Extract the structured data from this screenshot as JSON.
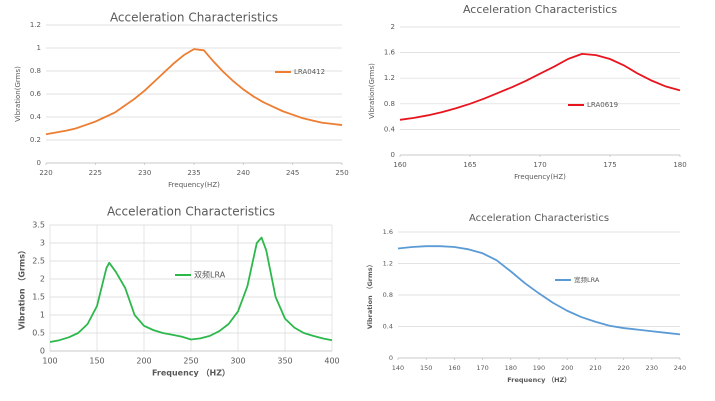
{
  "chart_data": [
    {
      "type": "line",
      "title": "Acceleration Characteristics",
      "x_label": "Frequency(HZ)",
      "y_label": "Vibration(Grms)",
      "x": [
        220,
        221,
        222,
        223,
        224,
        225,
        226,
        227,
        228,
        229,
        230,
        231,
        232,
        233,
        234,
        235,
        236,
        237,
        238,
        239,
        240,
        241,
        242,
        243,
        244,
        245,
        246,
        247,
        248,
        249,
        250
      ],
      "series": [
        {
          "name": "LRA0412",
          "color": "#ed7d31",
          "values": [
            0.25,
            0.265,
            0.28,
            0.3,
            0.33,
            0.36,
            0.4,
            0.44,
            0.5,
            0.56,
            0.63,
            0.71,
            0.79,
            0.87,
            0.94,
            0.99,
            0.98,
            0.88,
            0.79,
            0.71,
            0.64,
            0.58,
            0.53,
            0.49,
            0.45,
            0.42,
            0.39,
            0.37,
            0.35,
            0.34,
            0.33
          ]
        }
      ],
      "xlim": [
        220,
        250
      ],
      "xticks": [
        220,
        225,
        230,
        235,
        240,
        245,
        250
      ],
      "ylim": [
        0,
        1.2
      ],
      "yticks": [
        0,
        0.2,
        0.4,
        0.6,
        0.8,
        1,
        1.2
      ],
      "grid": "y"
    },
    {
      "type": "line",
      "title": "Acceleration Characteristics",
      "x_label": "Frequency(HZ)",
      "y_label": "Vibration(Grms)",
      "x": [
        160,
        161,
        162,
        163,
        164,
        165,
        166,
        167,
        168,
        169,
        170,
        171,
        172,
        173,
        174,
        175,
        176,
        177,
        178,
        179,
        180
      ],
      "series": [
        {
          "name": "LRA0619",
          "color": "#e8141e",
          "values": [
            0.55,
            0.58,
            0.62,
            0.67,
            0.73,
            0.8,
            0.88,
            0.97,
            1.06,
            1.16,
            1.27,
            1.38,
            1.5,
            1.58,
            1.56,
            1.5,
            1.4,
            1.27,
            1.16,
            1.07,
            1.01
          ]
        }
      ],
      "xlim": [
        160,
        180
      ],
      "xticks": [
        160,
        165,
        170,
        175,
        180
      ],
      "ylim": [
        0,
        2
      ],
      "yticks": [
        0,
        0.4,
        0.8,
        1.2,
        1.6,
        2
      ],
      "grid": "y"
    },
    {
      "type": "line",
      "title": "Acceleration Characteristics",
      "x_label": "Frequency （HZ）",
      "y_label": "Vibration （Grms）",
      "x": [
        100,
        110,
        120,
        130,
        140,
        150,
        160,
        163,
        170,
        180,
        190,
        200,
        210,
        220,
        230,
        240,
        250,
        260,
        270,
        280,
        290,
        300,
        310,
        320,
        325,
        330,
        340,
        350,
        360,
        370,
        380,
        390,
        400
      ],
      "series": [
        {
          "name": "双频LRA",
          "color": "#2db84c",
          "values": [
            0.25,
            0.3,
            0.38,
            0.5,
            0.75,
            1.25,
            2.3,
            2.45,
            2.2,
            1.75,
            1,
            0.7,
            0.58,
            0.5,
            0.45,
            0.4,
            0.32,
            0.35,
            0.42,
            0.55,
            0.75,
            1.1,
            1.8,
            3,
            3.15,
            2.8,
            1.5,
            0.9,
            0.65,
            0.5,
            0.42,
            0.35,
            0.3
          ]
        }
      ],
      "xlim": [
        100,
        400
      ],
      "xticks": [
        100,
        150,
        200,
        250,
        300,
        350,
        400
      ],
      "ylim": [
        0,
        3.5
      ],
      "yticks": [
        0,
        0.5,
        1,
        1.5,
        2,
        2.5,
        3,
        3.5
      ],
      "grid": "both"
    },
    {
      "type": "line",
      "title": "Acceleration Characteristics",
      "x_label": "Frequency （HZ）",
      "y_label": "Vibration （Grms）",
      "x": [
        140,
        145,
        150,
        155,
        160,
        165,
        170,
        175,
        180,
        185,
        190,
        195,
        200,
        205,
        210,
        215,
        220,
        225,
        230,
        235,
        240
      ],
      "series": [
        {
          "name": "宽频LRA",
          "color": "#5b9bd5",
          "values": [
            1.39,
            1.41,
            1.42,
            1.42,
            1.41,
            1.38,
            1.33,
            1.24,
            1.1,
            0.95,
            0.82,
            0.7,
            0.6,
            0.52,
            0.46,
            0.41,
            0.38,
            0.36,
            0.34,
            0.32,
            0.3
          ]
        }
      ],
      "xlim": [
        140,
        240
      ],
      "xticks": [
        140,
        150,
        160,
        170,
        180,
        190,
        200,
        210,
        220,
        230,
        240
      ],
      "ylim": [
        0,
        1.6
      ],
      "yticks": [
        0,
        0.4,
        0.8,
        1.2,
        1.6
      ],
      "grid": "y"
    }
  ]
}
